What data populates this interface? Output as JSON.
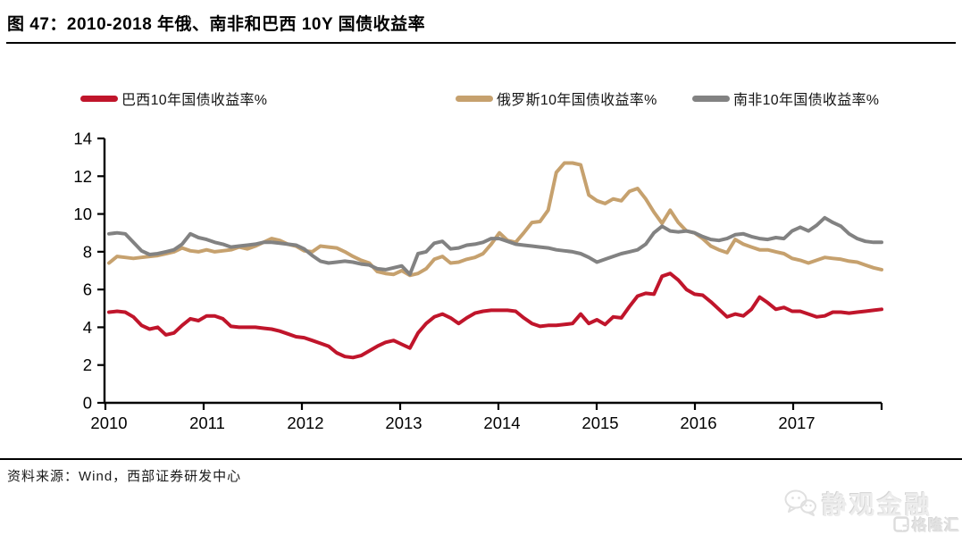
{
  "header": {
    "title": "图 47：2010-2018 年俄、南非和巴西 10Y 国债收益率"
  },
  "footer": {
    "source": "资料来源：Wind，西部证券研发中心"
  },
  "watermark": {
    "wechat_name": "静观金融",
    "platform_name": "格隆汇"
  },
  "chart_data": {
    "type": "line",
    "title": "2010-2018 年俄、南非和巴西 10Y 国债收益率",
    "x_start_year": 2010,
    "points_per_year": 12,
    "xtick_labels": [
      "2010",
      "2011",
      "2012",
      "2013",
      "2014",
      "2015",
      "2016",
      "2017"
    ],
    "xlabel": "",
    "ylabel": "",
    "ylim": [
      0,
      14
    ],
    "yticks": [
      0,
      2,
      4,
      6,
      8,
      10,
      12,
      14
    ],
    "grid": false,
    "legend_position": "top",
    "series": [
      {
        "name": "巴西10年国债收益率%",
        "color": "#C0152B",
        "values": [
          4.8,
          4.85,
          4.8,
          4.55,
          4.1,
          3.9,
          4.0,
          3.6,
          3.7,
          4.1,
          4.45,
          4.35,
          4.6,
          4.6,
          4.45,
          4.05,
          4.0,
          4.0,
          4.0,
          3.95,
          3.9,
          3.8,
          3.65,
          3.5,
          3.45,
          3.3,
          3.15,
          3.0,
          2.65,
          2.45,
          2.4,
          2.5,
          2.75,
          3.0,
          3.2,
          3.3,
          3.1,
          2.9,
          3.7,
          4.2,
          4.55,
          4.7,
          4.5,
          4.2,
          4.5,
          4.75,
          4.85,
          4.9,
          4.9,
          4.9,
          4.85,
          4.5,
          4.2,
          4.05,
          4.1,
          4.1,
          4.15,
          4.2,
          4.7,
          4.2,
          4.4,
          4.15,
          4.55,
          4.5,
          5.1,
          5.65,
          5.8,
          5.75,
          6.7,
          6.85,
          6.5,
          6.0,
          5.75,
          5.7,
          5.35,
          4.95,
          4.55,
          4.7,
          4.6,
          4.95,
          5.6,
          5.3,
          4.95,
          5.05,
          4.85,
          4.85,
          4.7,
          4.55,
          4.6,
          4.8,
          4.8,
          4.75,
          4.8,
          4.85,
          4.9,
          4.95
        ]
      },
      {
        "name": "俄罗斯10年国债收益率%",
        "color": "#C6A16E",
        "values": [
          7.4,
          7.75,
          7.7,
          7.65,
          7.7,
          7.75,
          7.8,
          7.9,
          8.0,
          8.2,
          8.05,
          8.0,
          8.1,
          8.0,
          8.05,
          8.1,
          8.25,
          8.15,
          8.3,
          8.5,
          8.7,
          8.6,
          8.4,
          8.3,
          8.05,
          8.0,
          8.3,
          8.25,
          8.2,
          8.0,
          7.75,
          7.55,
          7.4,
          6.95,
          6.85,
          6.8,
          7.0,
          6.75,
          6.85,
          7.1,
          7.6,
          7.75,
          7.4,
          7.45,
          7.6,
          7.7,
          7.9,
          8.4,
          9.0,
          8.6,
          8.5,
          9.0,
          9.55,
          9.6,
          10.2,
          12.2,
          12.7,
          12.7,
          12.6,
          11.0,
          10.7,
          10.55,
          10.8,
          10.7,
          11.2,
          11.35,
          10.8,
          10.1,
          9.5,
          10.2,
          9.55,
          9.1,
          9.0,
          8.7,
          8.3,
          8.1,
          7.95,
          8.65,
          8.4,
          8.25,
          8.1,
          8.1,
          8.0,
          7.9,
          7.65,
          7.55,
          7.4,
          7.55,
          7.7,
          7.65,
          7.6,
          7.5,
          7.45,
          7.3,
          7.15,
          7.05
        ]
      },
      {
        "name": "南非10年国债收益率%",
        "color": "#828282",
        "values": [
          8.95,
          9.0,
          8.95,
          8.5,
          8.05,
          7.85,
          7.9,
          8.0,
          8.1,
          8.4,
          8.95,
          8.75,
          8.65,
          8.5,
          8.4,
          8.25,
          8.3,
          8.35,
          8.4,
          8.5,
          8.5,
          8.45,
          8.4,
          8.35,
          8.15,
          7.8,
          7.5,
          7.4,
          7.45,
          7.5,
          7.45,
          7.35,
          7.3,
          7.1,
          7.05,
          7.15,
          7.25,
          6.8,
          7.9,
          8.0,
          8.45,
          8.55,
          8.15,
          8.2,
          8.35,
          8.4,
          8.5,
          8.7,
          8.7,
          8.55,
          8.4,
          8.35,
          8.3,
          8.25,
          8.2,
          8.1,
          8.05,
          8.0,
          7.9,
          7.7,
          7.45,
          7.6,
          7.75,
          7.9,
          8.0,
          8.1,
          8.4,
          9.0,
          9.35,
          9.1,
          9.05,
          9.1,
          9.0,
          8.8,
          8.65,
          8.6,
          8.7,
          8.9,
          8.95,
          8.8,
          8.7,
          8.65,
          8.75,
          8.7,
          9.1,
          9.3,
          9.1,
          9.4,
          9.8,
          9.55,
          9.35,
          8.95,
          8.7,
          8.55,
          8.5,
          8.5
        ]
      }
    ]
  }
}
